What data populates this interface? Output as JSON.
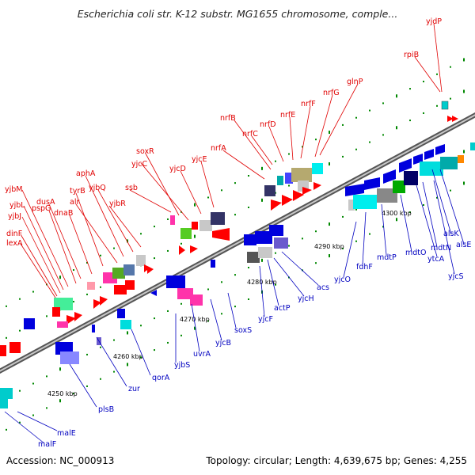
{
  "title": "Escherichia coli str. K-12 substr. MG1655 chromosome, comple...",
  "footer": {
    "accession": "Accession: NC_000913",
    "summary": "Topology: circular; Length: 4,639,675 bp; Genes: 4,255"
  },
  "colors": {
    "upper_gene_label": "#e00000",
    "lower_gene_label": "#0000c0",
    "tick": "#008800",
    "backbone": "#7f7f7f"
  },
  "kbp_labels": [
    "4250 kbp",
    "4260 kbp",
    "4270 kbp",
    "4280 kbp",
    "4290 kbp",
    "4300 kbp"
  ],
  "upper_genes": [
    "yjdP",
    "rpiB",
    "glnP",
    "nrfG",
    "nrfF",
    "nrfE",
    "nrfD",
    "nrfC",
    "nrfB",
    "nrfA",
    "yjcE",
    "yjcD",
    "yjcC",
    "soxR",
    "ssb",
    "yjbR",
    "yjbQ",
    "aphA",
    "alr",
    "tyrB",
    "dnaB",
    "dusA",
    "pspG",
    "yjbM",
    "yjbL",
    "yjbJ",
    "dinF",
    "lexA"
  ],
  "lower_genes": [
    "alsK",
    "alsE",
    "yjcS",
    "mdtN",
    "ytcA",
    "mdtO",
    "mdtP",
    "fdhF",
    "yjcO",
    "acs",
    "yjcH",
    "actP",
    "yjcF",
    "soxS",
    "yjcB",
    "uvrA",
    "yjbS",
    "qorA",
    "zur",
    "plsB",
    "malE",
    "malF"
  ]
}
